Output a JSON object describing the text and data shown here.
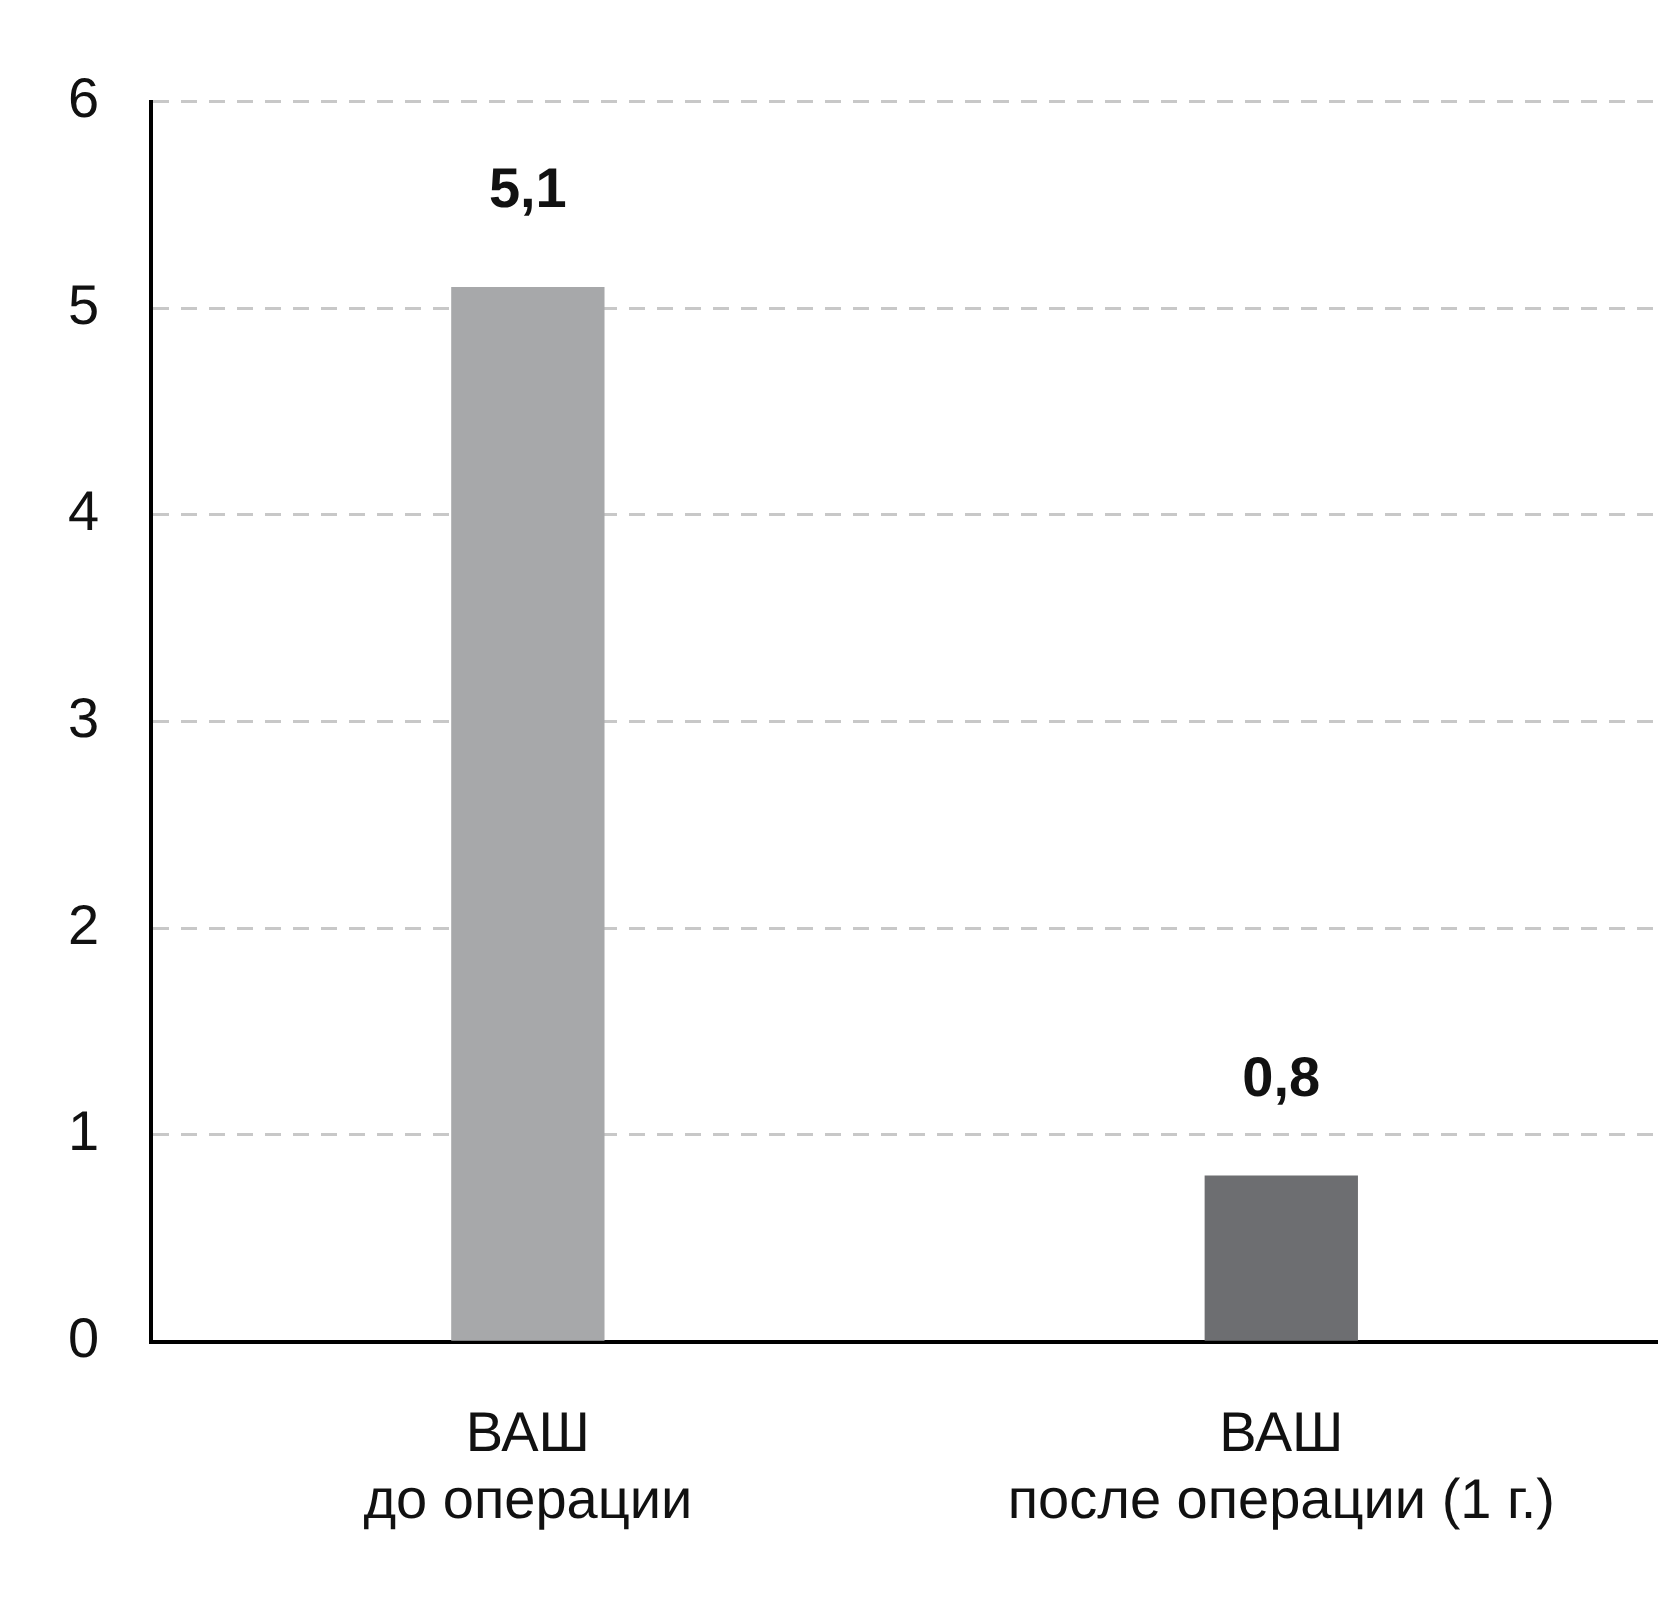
{
  "chart_data": {
    "type": "bar",
    "categories": [
      "ВАШ\nдо операции",
      "ВАШ\nпосле операции (1 г.)"
    ],
    "values": [
      5.1,
      0.8
    ],
    "colors": [
      "#a7a8aa",
      "#6d6e71"
    ],
    "value_labels": [
      "5,1",
      "0,8"
    ],
    "ylim": [
      0,
      6
    ],
    "yticks": [
      0,
      1,
      2,
      3,
      4,
      5,
      6
    ],
    "grid": "y",
    "legend": false
  }
}
